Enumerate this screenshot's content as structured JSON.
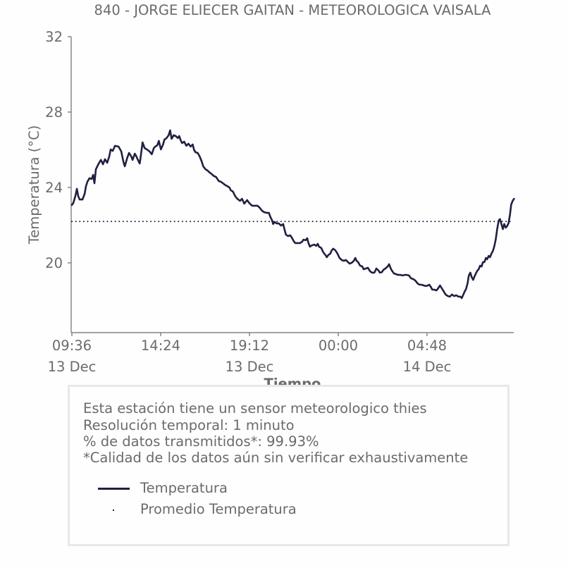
{
  "chart_data": {
    "type": "line",
    "title": "840 - JORGE ELIECER GAITAN - METEOROLOGICA VAISALA",
    "xlabel": "Tiempo",
    "ylabel": "Temperatura (°C)",
    "x_units": "hours since 09:36 13 Dec",
    "xlim": [
      0,
      23.9
    ],
    "ylim": [
      16.3,
      32
    ],
    "yticks": [
      20,
      24,
      28,
      32
    ],
    "ytick_labels": [
      "20",
      "24",
      "28",
      "32"
    ],
    "xticks": [
      0,
      4.8,
      9.6,
      14.4,
      19.2
    ],
    "xtick_labels": [
      {
        "time": "09:36",
        "date": "13 Dec"
      },
      {
        "time": "14:24",
        "date": ""
      },
      {
        "time": "19:12",
        "date": "13 Dec"
      },
      {
        "time": "00:00",
        "date": ""
      },
      {
        "time": "04:48",
        "date": "14 Dec"
      }
    ],
    "grid": false,
    "series": [
      {
        "name": "Temperatura",
        "color": "#1f2041",
        "style": "solid",
        "x": [
          0.0,
          0.08,
          0.19,
          0.27,
          0.34,
          0.42,
          0.57,
          0.69,
          0.76,
          0.84,
          0.95,
          1.07,
          1.15,
          1.22,
          1.3,
          1.45,
          1.57,
          1.68,
          1.79,
          1.91,
          2.02,
          2.1,
          2.21,
          2.33,
          2.52,
          2.67,
          2.79,
          2.86,
          2.98,
          3.09,
          3.21,
          3.28,
          3.4,
          3.47,
          3.59,
          3.67,
          3.74,
          3.82,
          3.93,
          4.05,
          4.2,
          4.32,
          4.43,
          4.51,
          4.62,
          4.7,
          4.81,
          4.93,
          5.0,
          5.12,
          5.23,
          5.31,
          5.39,
          5.5,
          5.61,
          5.73,
          5.8,
          5.88,
          5.96,
          6.07,
          6.19,
          6.3,
          6.42,
          6.53,
          6.61,
          6.68,
          6.8,
          6.91,
          7.03,
          7.1,
          7.22,
          7.33,
          7.45,
          7.56,
          7.68,
          7.79,
          7.94,
          8.06,
          8.21,
          8.32,
          8.4,
          8.52,
          8.59,
          8.71,
          8.82,
          8.94,
          9.09,
          9.2,
          9.32,
          9.47,
          9.58,
          9.74,
          9.89,
          10.04,
          10.16,
          10.27,
          10.39,
          10.54,
          10.65,
          10.73,
          10.81,
          10.88,
          10.96,
          11.07,
          11.19,
          11.3,
          11.42,
          11.49,
          11.57,
          11.68,
          11.8,
          11.88,
          11.99,
          12.07,
          12.22,
          12.33,
          12.45,
          12.52,
          12.64,
          12.72,
          12.79,
          12.87,
          12.98,
          13.1,
          13.21,
          13.29,
          13.36,
          13.48,
          13.59,
          13.71,
          13.78,
          13.86,
          13.97,
          14.05,
          14.13,
          14.24,
          14.36,
          14.47,
          14.59,
          14.7,
          14.82,
          14.89,
          15.01,
          15.12,
          15.24,
          15.32,
          15.39,
          15.47,
          15.58,
          15.7,
          15.77,
          15.89,
          16.0,
          16.12,
          16.23,
          16.35,
          16.46,
          16.58,
          16.65,
          16.76,
          16.84,
          16.95,
          17.07,
          17.15,
          17.22,
          17.3,
          17.41,
          17.53,
          17.64,
          17.76,
          17.87,
          17.99,
          18.1,
          18.22,
          18.33,
          18.45,
          18.56,
          18.68,
          18.79,
          18.91,
          19.02,
          19.13,
          19.25,
          19.32,
          19.4,
          19.48,
          19.59,
          19.71,
          19.78,
          19.9,
          19.97,
          20.09,
          20.2,
          20.32,
          20.43,
          20.55,
          20.66,
          20.78,
          20.89,
          21.0,
          21.08,
          21.16,
          21.23,
          21.31,
          21.39,
          21.46,
          21.54,
          21.61,
          21.69,
          21.77,
          21.84,
          21.92,
          21.99,
          22.07,
          22.15,
          22.22,
          22.3,
          22.38,
          22.45,
          22.53,
          22.6,
          22.68,
          22.76,
          22.83,
          22.91,
          22.99,
          23.07,
          23.14,
          23.22,
          23.3,
          23.37,
          23.45,
          23.52,
          23.6,
          23.68,
          23.75,
          23.83,
          23.9
        ],
        "y": [
          23.07,
          23.18,
          23.55,
          23.93,
          23.55,
          23.36,
          23.36,
          23.66,
          24.07,
          24.3,
          24.49,
          24.45,
          24.67,
          24.22,
          24.97,
          25.27,
          25.46,
          25.23,
          25.5,
          25.31,
          25.64,
          26.02,
          25.94,
          26.21,
          26.17,
          25.91,
          25.35,
          25.12,
          25.53,
          25.83,
          25.64,
          25.46,
          25.79,
          25.68,
          25.42,
          25.27,
          25.79,
          26.39,
          26.09,
          26.02,
          25.91,
          25.76,
          26.09,
          26.17,
          26.24,
          26.47,
          26.02,
          26.28,
          26.54,
          26.62,
          26.77,
          27.03,
          26.58,
          26.77,
          26.73,
          26.62,
          26.73,
          26.5,
          26.35,
          26.43,
          26.21,
          26.32,
          26.17,
          26.28,
          25.98,
          25.87,
          25.83,
          25.64,
          25.35,
          25.12,
          24.97,
          24.9,
          24.79,
          24.71,
          24.6,
          24.56,
          24.34,
          24.3,
          24.19,
          24.11,
          24.07,
          24.0,
          23.85,
          23.78,
          23.55,
          23.4,
          23.29,
          23.4,
          23.14,
          23.33,
          23.18,
          23.03,
          23.03,
          23.03,
          22.92,
          22.77,
          22.69,
          22.65,
          22.65,
          22.43,
          22.28,
          22.06,
          22.17,
          22.09,
          22.09,
          21.98,
          22.06,
          21.79,
          21.5,
          21.42,
          21.46,
          21.35,
          21.16,
          21.05,
          21.05,
          21.05,
          21.12,
          21.23,
          21.2,
          21.31,
          21.05,
          20.86,
          20.93,
          20.97,
          20.9,
          21.01,
          20.86,
          20.79,
          20.56,
          20.41,
          20.3,
          20.41,
          20.49,
          20.67,
          20.75,
          20.67,
          20.49,
          20.26,
          20.15,
          20.11,
          20.15,
          20.07,
          19.96,
          20.0,
          20.11,
          20.26,
          20.11,
          20.04,
          19.85,
          19.81,
          19.66,
          19.7,
          19.74,
          19.55,
          19.48,
          19.48,
          19.7,
          19.59,
          19.48,
          19.51,
          19.63,
          19.7,
          19.81,
          19.93,
          19.74,
          19.59,
          19.44,
          19.4,
          19.36,
          19.36,
          19.33,
          19.36,
          19.36,
          19.33,
          19.18,
          19.14,
          19.07,
          18.92,
          18.84,
          18.84,
          18.8,
          18.77,
          18.8,
          18.84,
          18.73,
          18.58,
          18.58,
          18.54,
          18.62,
          18.8,
          18.69,
          18.5,
          18.32,
          18.24,
          18.21,
          18.32,
          18.24,
          18.28,
          18.21,
          18.21,
          18.13,
          18.32,
          18.47,
          18.62,
          18.92,
          19.33,
          19.48,
          19.25,
          19.1,
          19.29,
          19.44,
          19.59,
          19.66,
          19.85,
          19.81,
          20.04,
          20.04,
          20.26,
          20.19,
          20.37,
          20.3,
          20.49,
          20.64,
          20.86,
          21.23,
          21.79,
          22.24,
          22.32,
          22.06,
          21.79,
          22.06,
          21.87,
          21.94,
          22.09,
          22.54,
          23.1,
          23.29,
          23.4
        ]
      },
      {
        "name": "Promedio Temperatura",
        "color": "#1f2041",
        "style": "dotted",
        "x": [
          0,
          23.83
        ],
        "y": [
          22.2,
          22.2
        ]
      }
    ],
    "legend": [
      "Temperatura",
      "Promedio Temperatura"
    ],
    "legend_position": "bottom"
  },
  "info": {
    "lines": [
      "Esta estación tiene un sensor meteorologico thies",
      "Resolución temporal: 1 minuto",
      "% de datos transmitidos*: 99.93%",
      "*Calidad de los datos aún sin verificar exhaustivamente"
    ]
  },
  "colors": {
    "text": "#6b6b6b",
    "axis": "#6b6b6b",
    "series": "#1f2041",
    "legend_border": "#e8e8e8"
  }
}
